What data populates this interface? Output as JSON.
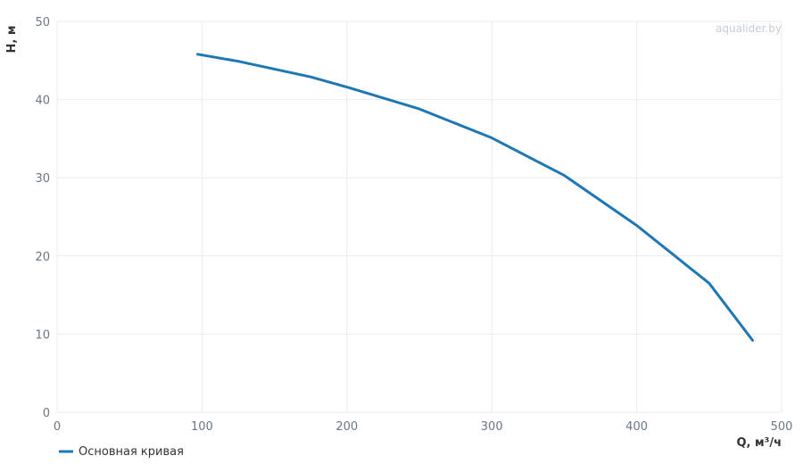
{
  "chart_data": {
    "type": "line",
    "watermark": "aqualider.by",
    "x_label": "Q, м³/ч",
    "y_label": "H, м",
    "x": [
      97,
      125,
      150,
      175,
      200,
      250,
      300,
      350,
      400,
      450,
      480
    ],
    "series": [
      {
        "name": "Основная кривая",
        "color": "#1f77b4",
        "values": [
          45.8,
          44.9,
          43.9,
          42.9,
          41.6,
          38.8,
          35.1,
          30.3,
          23.9,
          16.5,
          9.2
        ]
      }
    ],
    "xlim": [
      0,
      500
    ],
    "xticks": [
      0,
      100,
      200,
      300,
      400,
      500
    ],
    "ylim": [
      0,
      50
    ],
    "yticks": [
      0,
      10,
      20,
      30,
      40,
      50
    ],
    "grid": true,
    "legend": "bottom-left"
  }
}
